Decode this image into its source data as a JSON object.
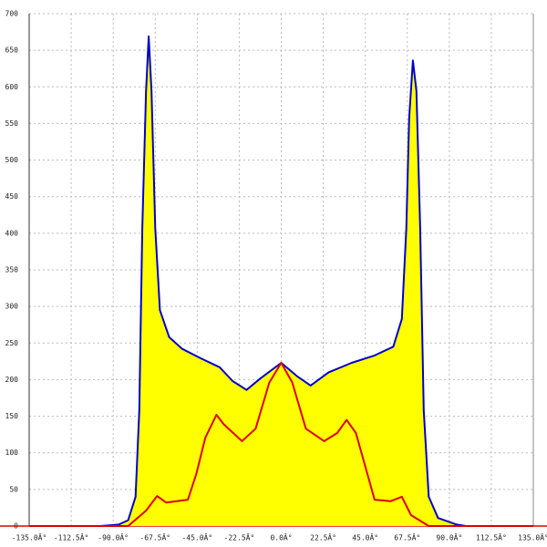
{
  "chart_data": {
    "type": "line",
    "xlim": [
      -135,
      135
    ],
    "ylim": [
      0,
      700
    ],
    "xticks": [
      {
        "value": -135,
        "label": "-135.0Â°"
      },
      {
        "value": -112.5,
        "label": "-112.5Â°"
      },
      {
        "value": -90,
        "label": "-90.0Â°"
      },
      {
        "value": -67.5,
        "label": "-67.5Â°"
      },
      {
        "value": -45,
        "label": "-45.0Â°"
      },
      {
        "value": -22.5,
        "label": "-22.5Â°"
      },
      {
        "value": 0,
        "label": "0.0Â°"
      },
      {
        "value": 22.5,
        "label": "22.5Â°"
      },
      {
        "value": 45,
        "label": "45.0Â°"
      },
      {
        "value": 67.5,
        "label": "67.5Â°"
      },
      {
        "value": 90,
        "label": "90.0Â°"
      },
      {
        "value": 112.5,
        "label": "112.5Â°"
      },
      {
        "value": 135,
        "label": "135.0Â°"
      }
    ],
    "yticks": [
      0,
      50,
      100,
      150,
      200,
      250,
      300,
      350,
      400,
      450,
      500,
      550,
      600,
      650,
      700
    ],
    "grid": true,
    "series": [
      {
        "color": "#0000cc",
        "fill": "#ffff00",
        "x": [
          -97,
          -87,
          -82,
          -78,
          -76,
          -74.4,
          -72.4,
          -71,
          -69.5,
          -67.5,
          -65,
          -60,
          -53,
          -43,
          -33,
          -26,
          -18.6,
          -11,
          0,
          8.3,
          15.7,
          25.4,
          37.7,
          50,
          60,
          64.6,
          67,
          68.5,
          70.5,
          72.4,
          74.4,
          76.3,
          79,
          84,
          94,
          99
        ],
        "values": [
          0,
          2,
          8,
          40,
          158,
          407,
          594,
          669,
          594,
          407,
          295,
          258,
          242,
          229,
          217,
          198,
          186,
          202,
          223,
          205,
          192,
          210,
          223,
          233,
          245,
          283,
          407,
          557,
          636,
          594,
          407,
          158,
          40,
          11,
          2,
          0
        ]
      },
      {
        "color": "#dd0000",
        "x": [
          -135,
          -82,
          -72.4,
          -66.5,
          -61.6,
          -50,
          -45.5,
          -40.6,
          -34.7,
          -30.8,
          -21,
          -13.7,
          -6.4,
          0,
          5.9,
          13.2,
          23,
          30,
          35,
          40,
          50,
          58.7,
          64.6,
          69.5,
          79,
          135
        ],
        "values": [
          0,
          0,
          21,
          41,
          32,
          36,
          71,
          121,
          152,
          139,
          116,
          133,
          196,
          223,
          196,
          133,
          116,
          127,
          145,
          127,
          36,
          34,
          40,
          15,
          0,
          0
        ]
      }
    ]
  }
}
